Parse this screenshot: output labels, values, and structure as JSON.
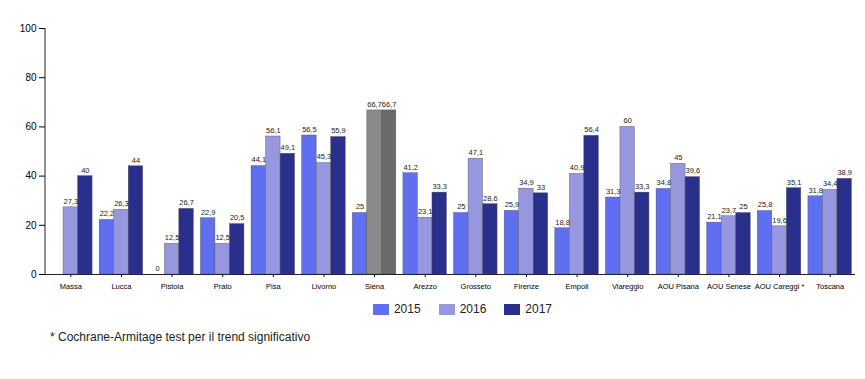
{
  "chart_data": {
    "type": "bar",
    "categories": [
      "Massa",
      "Lucca",
      "Pistoia",
      "Prato",
      "Pisa",
      "Livorno",
      "Siena",
      "Arezzo",
      "Grosseto",
      "Firenze",
      "Empoli",
      "Viareggio",
      "AOU Pisana",
      "AOU Senese",
      "AOU Careggi *",
      "Toscana"
    ],
    "series": [
      {
        "name": "2015",
        "color": "#5f6ff2",
        "values": [
          null,
          22.2,
          0,
          22.9,
          44.1,
          56.5,
          25,
          41.2,
          25,
          25.9,
          18.8,
          31.3,
          34.8,
          21.1,
          25.8,
          31.8
        ],
        "value_labels": [
          null,
          "22,2",
          "0",
          "22,9",
          "44,1",
          "56,5",
          "25",
          "41,2",
          "25",
          "25,9",
          "18,8",
          "31,3",
          "34,8",
          "21,1",
          "25,8",
          "31,8"
        ]
      },
      {
        "name": "2016",
        "color": "#9797e0",
        "colors": [
          "#9797e0",
          "#9797e0",
          "#9797e0",
          "#9797e0",
          "#9797e0",
          "#9797e0",
          "#8a8a8a",
          "#9797e0",
          "#9797e0",
          "#9797e0",
          "#9797e0",
          "#9797e0",
          "#9797e0",
          "#9797e0",
          "#9797e0",
          "#9797e0"
        ],
        "values": [
          27.3,
          26.3,
          12.5,
          12.5,
          56.1,
          45.3,
          66.7,
          23.1,
          47.1,
          34.9,
          40.9,
          60,
          45,
          23.7,
          19.6,
          34.4
        ],
        "value_labels": [
          "27,3",
          "26,3",
          "12,5",
          "12,5",
          "56,1",
          "45,3",
          "66,7",
          "23,1",
          "47,1",
          "34,9",
          "40,9",
          "60",
          "45",
          "23,7",
          "19,6",
          "34,4"
        ]
      },
      {
        "name": "2017",
        "color": "#2b2f8c",
        "colors": [
          "#2b2f8c",
          "#2b2f8c",
          "#2b2f8c",
          "#2b2f8c",
          "#2b2f8c",
          "#2b2f8c",
          "#6a6a6a",
          "#2b2f8c",
          "#2b2f8c",
          "#2b2f8c",
          "#2b2f8c",
          "#2b2f8c",
          "#2b2f8c",
          "#2b2f8c",
          "#2b2f8c",
          "#2b2f8c"
        ],
        "values": [
          40,
          44,
          26.7,
          20.5,
          49.1,
          55.9,
          66.7,
          33.3,
          28.6,
          33,
          56.4,
          33.3,
          39.6,
          25,
          35.1,
          38.9
        ],
        "value_labels": [
          "40",
          "44",
          "26,7",
          "20,5",
          "49,1",
          "55,9",
          "66,7",
          "33,3",
          "28,6",
          "33",
          "56,4",
          "33,3",
          "39,6",
          "25",
          "35,1",
          "38,9"
        ]
      }
    ],
    "ylim": [
      0,
      100
    ],
    "yticks": [
      0,
      20,
      40,
      60,
      80,
      100
    ],
    "grid": false,
    "data_labels": true,
    "legend": "bottom",
    "caption": "* Cochrane-Armitage test per il trend significativo"
  }
}
